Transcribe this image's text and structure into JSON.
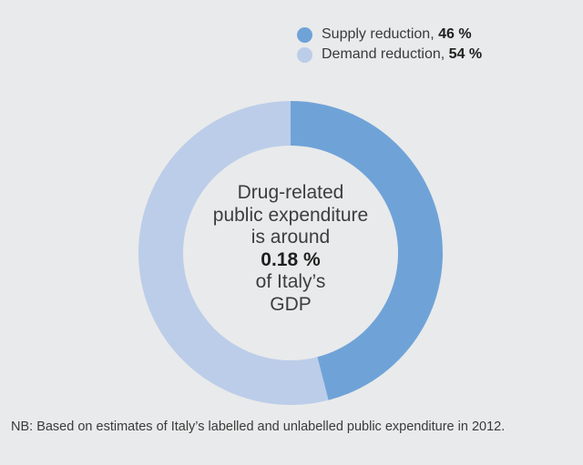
{
  "chart_data": {
    "type": "pie",
    "variant": "donut",
    "series": [
      {
        "name": "Supply reduction",
        "value": 46,
        "label": "46 %",
        "color": "#6fa3d8"
      },
      {
        "name": "Demand reduction",
        "value": 54,
        "label": "54 %",
        "color": "#bccde9"
      }
    ],
    "legend": "top-right",
    "center_text": {
      "line1": "Drug-related",
      "line2": "public expenditure",
      "line3": "is around",
      "value": "0.18 %",
      "line4": "of Italy’s",
      "line5": "GDP"
    },
    "note": "NB: Based on estimates of Italy’s labelled and unlabelled public expenditure in 2012."
  }
}
